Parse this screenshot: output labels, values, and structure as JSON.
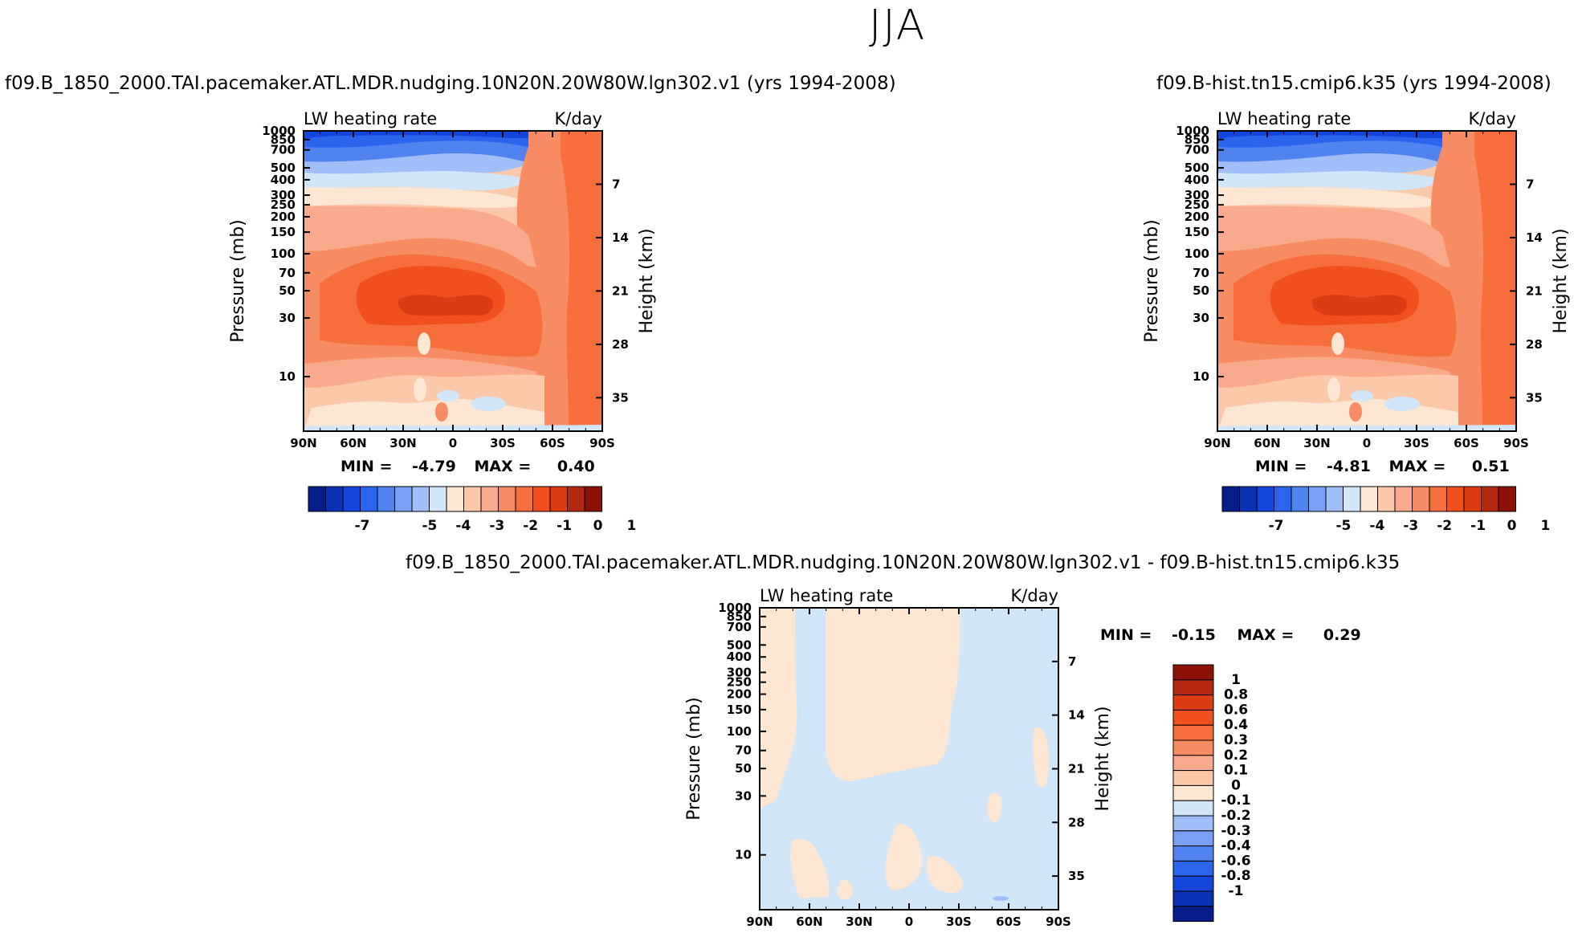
{
  "figure": {
    "title": "JJA"
  },
  "colors": {
    "full_scale": [
      "#061e8c",
      "#0a32b4",
      "#1446dc",
      "#2d64ec",
      "#5082f0",
      "#78a0f4",
      "#a0bef8",
      "#d2e6fa",
      "#fde6d2",
      "#fcc8aa",
      "#faaa8c",
      "#f78c64",
      "#f56e3c",
      "#f0501e",
      "#dc3c14",
      "#b42810",
      "#8c1208"
    ],
    "diff_scale": [
      "#061e8c",
      "#0a32b4",
      "#1446dc",
      "#2d64ec",
      "#5082f0",
      "#78a0f4",
      "#a0bef8",
      "#d2e6fa",
      "#fde6d2",
      "#fcc8aa",
      "#faaa8c",
      "#f78c64",
      "#f56e3c",
      "#f0501e",
      "#dc3c14",
      "#b42810",
      "#8c1208"
    ]
  },
  "panels": [
    {
      "id": "left",
      "title": "f09.B_1850_2000.TAI.pacemaker.ATL.MDR.nudging.10N20N.20W80W.lgn302.v1 (yrs 1994-2008)",
      "header_left": "LW heating rate",
      "header_right": "K/day",
      "min_label": "MIN =",
      "min_value": "-4.79",
      "max_label": "MAX =",
      "max_value": "0.40"
    },
    {
      "id": "right",
      "title": "f09.B-hist.tn15.cmip6.k35 (yrs 1994-2008)",
      "header_left": "LW heating rate",
      "header_right": "K/day",
      "min_label": "MIN =",
      "min_value": "-4.81",
      "max_label": "MAX =",
      "max_value": "0.51"
    },
    {
      "id": "diff",
      "title": "f09.B_1850_2000.TAI.pacemaker.ATL.MDR.nudging.10N20N.20W80W.lgn302.v1 - f09.B-hist.tn15.cmip6.k35",
      "header_left": "LW heating rate",
      "header_right": "K/day",
      "min_label": "MIN =",
      "min_value": "-0.15",
      "max_label": "MAX =",
      "max_value": "0.29"
    }
  ],
  "chart_data": [
    {
      "type": "contour",
      "panel": "left",
      "title": "LW heating rate",
      "units": "K/day",
      "x_ticks": [
        "90N",
        "60N",
        "30N",
        "0",
        "30S",
        "60S",
        "90S"
      ],
      "x_values": [
        90,
        60,
        30,
        0,
        -30,
        -60,
        -90
      ],
      "y_left_label": "Pressure (mb)",
      "y_left_ticks": [
        "10",
        "30",
        "50",
        "70",
        "100",
        "150",
        "200",
        "250",
        "300",
        "400",
        "500",
        "700",
        "850",
        "1000"
      ],
      "y_left_values": [
        10,
        30,
        50,
        70,
        100,
        150,
        200,
        250,
        300,
        400,
        500,
        700,
        850,
        1000
      ],
      "y_right_label": "Height (km)",
      "y_right_ticks": [
        "35",
        "28",
        "21",
        "14",
        "7"
      ],
      "y_right_values": [
        35,
        28,
        21,
        14,
        7
      ],
      "min": -4.79,
      "max": 0.4,
      "colorbar_labels": [
        "-7",
        "-5",
        "-4",
        "-3",
        "-2",
        "-1",
        "0",
        "1"
      ]
    },
    {
      "type": "contour",
      "panel": "right",
      "title": "LW heating rate",
      "units": "K/day",
      "x_ticks": [
        "90N",
        "60N",
        "30N",
        "0",
        "30S",
        "60S",
        "90S"
      ],
      "x_values": [
        90,
        60,
        30,
        0,
        -30,
        -60,
        -90
      ],
      "y_left_label": "Pressure (mb)",
      "y_left_ticks": [
        "10",
        "30",
        "50",
        "70",
        "100",
        "150",
        "200",
        "250",
        "300",
        "400",
        "500",
        "700",
        "850",
        "1000"
      ],
      "y_left_values": [
        10,
        30,
        50,
        70,
        100,
        150,
        200,
        250,
        300,
        400,
        500,
        700,
        850,
        1000
      ],
      "y_right_label": "Height (km)",
      "y_right_ticks": [
        "35",
        "28",
        "21",
        "14",
        "7"
      ],
      "y_right_values": [
        35,
        28,
        21,
        14,
        7
      ],
      "min": -4.81,
      "max": 0.51,
      "colorbar_labels": [
        "-7",
        "-5",
        "-4",
        "-3",
        "-2",
        "-1",
        "0",
        "1"
      ]
    },
    {
      "type": "contour",
      "panel": "diff",
      "title": "LW heating rate",
      "units": "K/day",
      "x_ticks": [
        "90N",
        "60N",
        "30N",
        "0",
        "30S",
        "60S",
        "90S"
      ],
      "x_values": [
        90,
        60,
        30,
        0,
        -30,
        -60,
        -90
      ],
      "y_left_label": "Pressure (mb)",
      "y_left_ticks": [
        "10",
        "30",
        "50",
        "70",
        "100",
        "150",
        "200",
        "250",
        "300",
        "400",
        "500",
        "700",
        "850",
        "1000"
      ],
      "y_left_values": [
        10,
        30,
        50,
        70,
        100,
        150,
        200,
        250,
        300,
        400,
        500,
        700,
        850,
        1000
      ],
      "y_right_label": "Height (km)",
      "y_right_ticks": [
        "35",
        "28",
        "21",
        "14",
        "7"
      ],
      "y_right_values": [
        35,
        28,
        21,
        14,
        7
      ],
      "min": -0.15,
      "max": 0.29,
      "colorbar_labels": [
        "1",
        "0.8",
        "0.6",
        "0.4",
        "0.3",
        "0.2",
        "0.1",
        "0",
        "-0.1",
        "-0.2",
        "-0.3",
        "-0.4",
        "-0.6",
        "-0.8",
        "-1"
      ]
    }
  ]
}
